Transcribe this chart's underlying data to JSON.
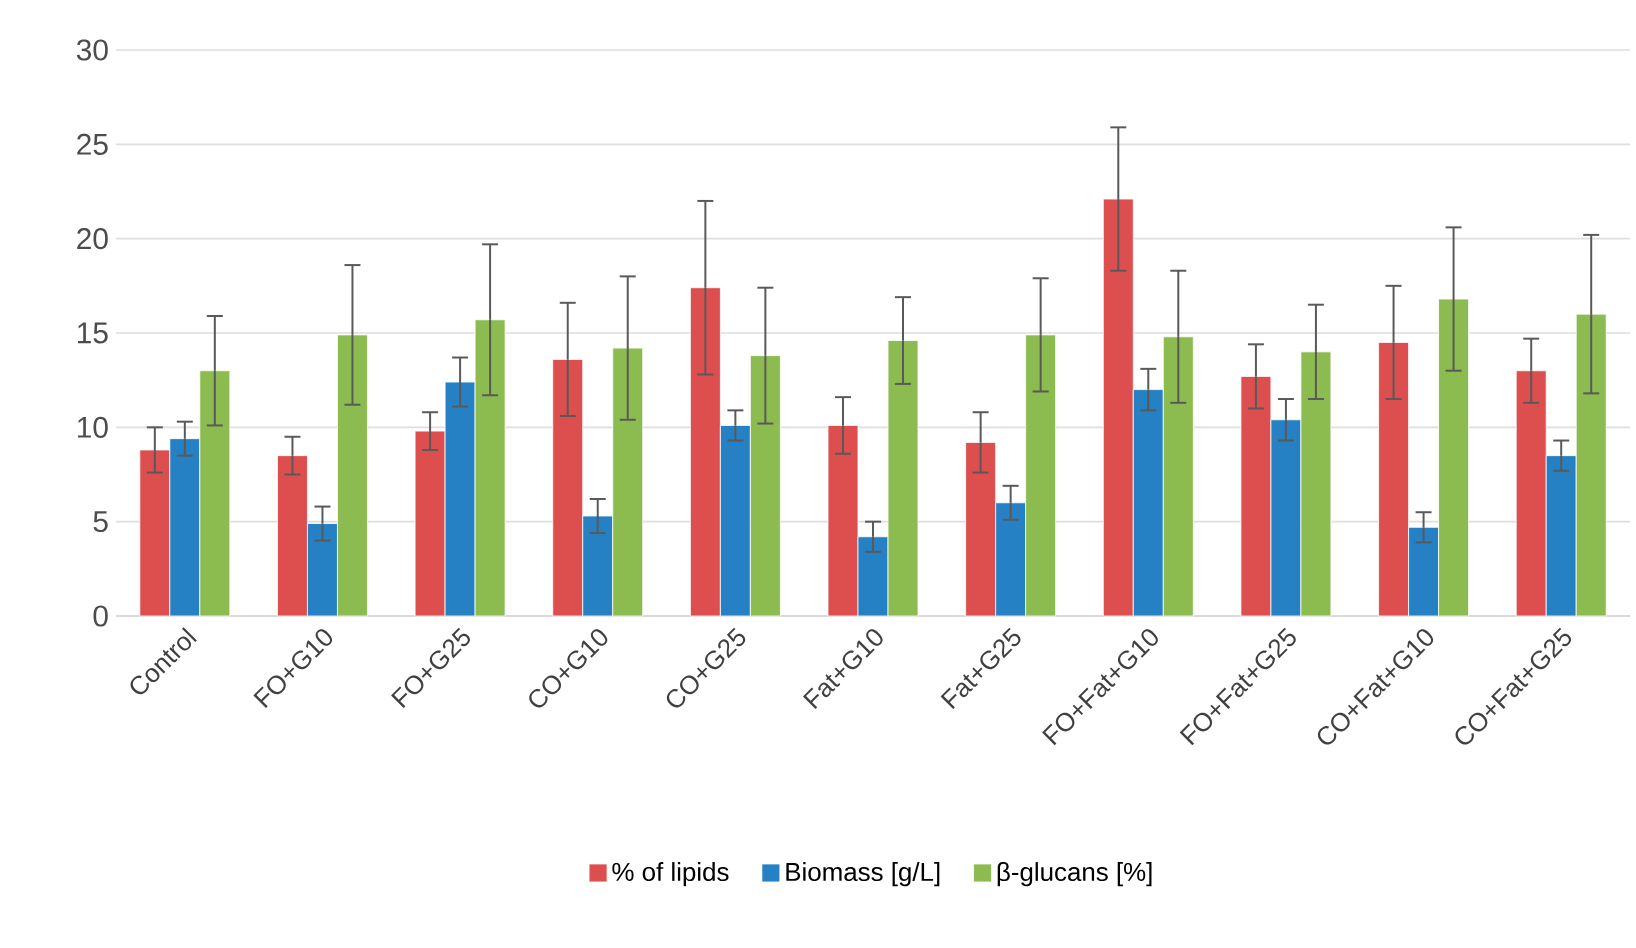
{
  "chart_data": {
    "type": "bar",
    "categories": [
      "Control",
      "FO+G10",
      "FO+G25",
      "CO+G10",
      "CO+G25",
      "Fat+G10",
      "Fat+G25",
      "FO+Fat+G10",
      "FO+Fat+G25",
      "CO+Fat+G10",
      "CO+Fat+G25"
    ],
    "series": [
      {
        "name": "% of lipids",
        "color": "#dd4f4f",
        "values": [
          8.8,
          8.5,
          9.8,
          13.6,
          17.4,
          10.1,
          9.2,
          22.1,
          12.7,
          14.5,
          13.0
        ],
        "errors": [
          1.2,
          1.0,
          1.0,
          3.0,
          4.6,
          1.5,
          1.6,
          3.8,
          1.7,
          3.0,
          1.7
        ]
      },
      {
        "name": "Biomass [g/L]",
        "color": "#2681c4",
        "values": [
          9.4,
          4.9,
          12.4,
          5.3,
          10.1,
          4.2,
          6.0,
          12.0,
          10.4,
          4.7,
          8.5
        ],
        "errors": [
          0.9,
          0.9,
          1.3,
          0.9,
          0.8,
          0.8,
          0.9,
          1.1,
          1.1,
          0.8,
          0.8
        ]
      },
      {
        "name": "β-glucans [%]",
        "color": "#8cbb50",
        "values": [
          13.0,
          14.9,
          15.7,
          14.2,
          13.8,
          14.6,
          14.9,
          14.8,
          14.0,
          16.8,
          16.0
        ],
        "errors": [
          2.9,
          3.7,
          4.0,
          3.8,
          3.6,
          2.3,
          3.0,
          3.5,
          2.5,
          3.8,
          4.2
        ]
      }
    ],
    "ylim": [
      0,
      30
    ],
    "yticks": [
      0,
      5,
      10,
      15,
      20,
      25,
      30
    ],
    "grid": "y",
    "legend": "bottom"
  }
}
